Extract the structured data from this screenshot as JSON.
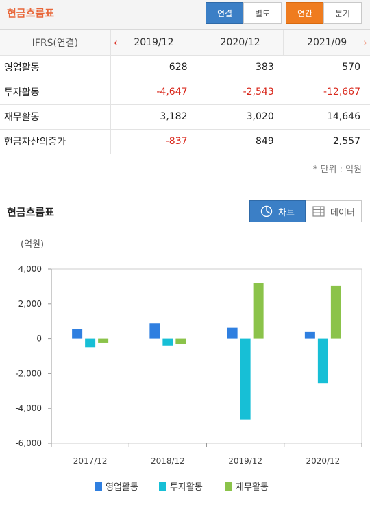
{
  "header": {
    "title": "현금흐름표",
    "seg_consolidated": "연결",
    "seg_separate": "별도",
    "seg_annual": "연간",
    "seg_quarter": "분기"
  },
  "table": {
    "header_label": "IFRS(연결)",
    "periods": [
      "2019/12",
      "2020/12",
      "2021/09"
    ],
    "rows": [
      {
        "label": "영업활동",
        "values": [
          "628",
          "383",
          "570"
        ]
      },
      {
        "label": "투자활동",
        "values": [
          "-4,647",
          "-2,543",
          "-12,667"
        ]
      },
      {
        "label": "재무활동",
        "values": [
          "3,182",
          "3,020",
          "14,646"
        ]
      },
      {
        "label": "현금자산의증가",
        "values": [
          "-837",
          "849",
          "2,557"
        ]
      }
    ],
    "unit_note": "* 단위 : 억원"
  },
  "section": {
    "title": "현금흐름표",
    "chart_button": "차트",
    "data_button": "데이터",
    "unit": "(억원)"
  },
  "colors": {
    "operating": "#2f7fe0",
    "investing": "#17bfd6",
    "financing": "#8bc34a",
    "negative": "#d9281c",
    "accent_blue": "#3b7fc6",
    "accent_orange": "#ef7c1f"
  },
  "chart_data": {
    "type": "bar",
    "categories": [
      "2017/12",
      "2018/12",
      "2019/12",
      "2020/12"
    ],
    "series": [
      {
        "name": "영업활동",
        "values": [
          560,
          880,
          628,
          383
        ]
      },
      {
        "name": "투자활동",
        "values": [
          -500,
          -400,
          -4647,
          -2543
        ]
      },
      {
        "name": "재무활동",
        "values": [
          -250,
          -300,
          3182,
          3020
        ]
      }
    ],
    "yticks": [
      "4,000",
      "2,000",
      "0",
      "-2,000",
      "-4,000",
      "-6,000"
    ],
    "ylim": [
      -6000,
      4000
    ],
    "legend_position": "bottom",
    "grid": false
  }
}
